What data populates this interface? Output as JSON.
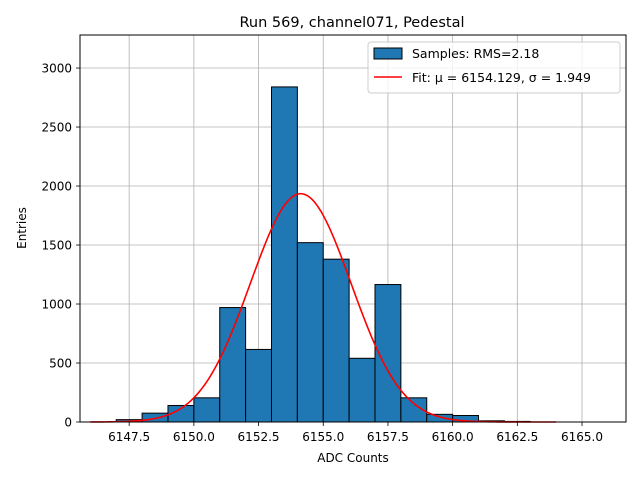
{
  "chart_data": {
    "type": "bar",
    "title": "Run 569, channel071, Pedestal",
    "xlabel": "ADC Counts",
    "ylabel": "Entries",
    "xlim": [
      6145.6,
      6166.7
    ],
    "ylim": [
      0,
      3280
    ],
    "xticks": [
      6147.5,
      6150.0,
      6152.5,
      6155.0,
      6157.5,
      6160.0,
      6162.5,
      6165.0
    ],
    "xtick_labels": [
      "6147.5",
      "6150.0",
      "6152.5",
      "6155.0",
      "6157.5",
      "6160.0",
      "6162.5",
      "6165.0"
    ],
    "yticks": [
      0,
      500,
      1000,
      1500,
      2000,
      2500,
      3000
    ],
    "ytick_labels": [
      "0",
      "500",
      "1000",
      "1500",
      "2000",
      "2500",
      "3000"
    ],
    "grid": true,
    "legend_position": "top-right",
    "histogram": {
      "name": "Samples: RMS=2.18",
      "bin_edges": [
        6147.0,
        6148.0,
        6149.0,
        6150.0,
        6151.0,
        6152.0,
        6153.0,
        6154.0,
        6155.0,
        6156.0,
        6157.0,
        6158.0,
        6159.0,
        6160.0,
        6161.0,
        6162.0,
        6163.0
      ],
      "values": [
        20,
        75,
        140,
        205,
        970,
        615,
        2840,
        1520,
        1380,
        540,
        1165,
        205,
        65,
        55,
        10,
        5
      ],
      "color": "#1f77b4",
      "edgecolor": "#000000"
    },
    "fit": {
      "name": "Fit: μ = 6154.129, σ = 1.949",
      "mu": 6154.129,
      "sigma": 1.949,
      "amplitude": 1935,
      "x_range": [
        6146.0,
        6164.0
      ],
      "color": "#ff0000"
    }
  }
}
